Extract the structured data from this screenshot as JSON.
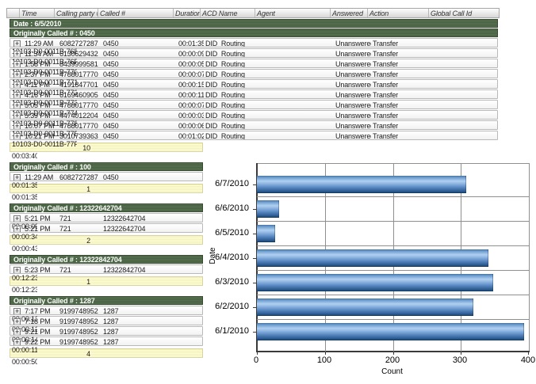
{
  "table": {
    "columns": [
      {
        "key": "expand",
        "label": ""
      },
      {
        "key": "time",
        "label": "Time"
      },
      {
        "key": "calling",
        "label": "Calling party #"
      },
      {
        "key": "called",
        "label": "Called #"
      },
      {
        "key": "duration",
        "label": "Duration"
      },
      {
        "key": "acd",
        "label": "ACD Name"
      },
      {
        "key": "agent",
        "label": "Agent"
      },
      {
        "key": "answered",
        "label": "Answered"
      },
      {
        "key": "action",
        "label": "Action"
      },
      {
        "key": "global_id",
        "label": "Global Call Id"
      }
    ],
    "date_band": "Date : 6/5/2010",
    "groups": [
      {
        "header": "Originally Called # : 0450",
        "wide": true,
        "rows": [
          {
            "time": "11:29 AM",
            "calling": "6082727287",
            "called": "0450",
            "duration": "00:01:35",
            "acd": "DID_Routing",
            "agent": "",
            "answered": "Unanswered",
            "action": "Transfer",
            "global_id": "10103-D0-0011B-768"
          },
          {
            "time": "11:34 AM",
            "calling": "6130629432",
            "called": "0450",
            "duration": "00:00:09",
            "acd": "DID_Routing",
            "agent": "",
            "answered": "Unanswered",
            "action": "Transfer",
            "global_id": "10103-D0-0011B-76F"
          },
          {
            "time": "1:58 PM",
            "calling": "8439999581",
            "called": "0450",
            "duration": "00:00:05",
            "acd": "DID_Routing",
            "agent": "",
            "answered": "Unanswered",
            "action": "Transfer",
            "global_id": "10103-D0-0011B-770"
          },
          {
            "time": "2:37 PM",
            "calling": "4788017770",
            "called": "0450",
            "duration": "00:00:07",
            "acd": "DID_Routing",
            "agent": "",
            "answered": "Unanswered",
            "action": "Transfer",
            "global_id": "10103-D0-0011B-771"
          },
          {
            "time": "4:11 PM",
            "calling": "4191847701",
            "called": "0450",
            "duration": "00:00:15",
            "acd": "DID_Routing",
            "agent": "",
            "answered": "Unanswered",
            "action": "Transfer",
            "global_id": "10103-D0-0011B-772"
          },
          {
            "time": "4:16 PM",
            "calling": "6169460905",
            "called": "0450",
            "duration": "00:00:11",
            "acd": "DID_Routing",
            "agent": "",
            "answered": "Unanswered",
            "action": "Transfer",
            "global_id": "10103-D0-0011B-773"
          },
          {
            "time": "5:05 PM",
            "calling": "4788017770",
            "called": "0450",
            "duration": "00:00:07",
            "acd": "DID_Routing",
            "agent": "",
            "answered": "Unanswered",
            "action": "Transfer",
            "global_id": "10103-D0-0011B-774"
          },
          {
            "time": "5:39 PM",
            "calling": "4474012204",
            "called": "0450",
            "duration": "00:00:03",
            "acd": "DID_Routing",
            "agent": "",
            "answered": "Unanswered",
            "action": "Transfer",
            "global_id": "10103-D0-0011B-778"
          },
          {
            "time": "10:07 PM",
            "calling": "4788017770",
            "called": "0450",
            "duration": "00:00:06",
            "acd": "DID_Routing",
            "agent": "",
            "answered": "Unanswered",
            "action": "Transfer",
            "global_id": "10103-D0-0011B-77E"
          },
          {
            "time": "10:21 PM",
            "calling": "3010739363",
            "called": "0450",
            "duration": "00:01:02",
            "acd": "DID_Routing",
            "agent": "",
            "answered": "Unanswered",
            "action": "Transfer",
            "global_id": "10103-D0-0011B-77F"
          }
        ],
        "summary": {
          "count": "10",
          "duration": "00:03:40"
        }
      },
      {
        "header": "Originally Called # : 100",
        "wide": false,
        "rows": [
          {
            "time": "11:29 AM",
            "calling": "6082727287",
            "called": "0450",
            "duration": "00:01:35"
          }
        ],
        "summary": {
          "count": "1",
          "duration": "00:01:35"
        }
      },
      {
        "header": "Originally Called # : 12322642704",
        "wide": false,
        "rows": [
          {
            "time": "5:21 PM",
            "calling": "721",
            "called": "12322642704",
            "duration": "00:00:09"
          },
          {
            "time": "5:21 PM",
            "calling": "721",
            "called": "12322642704",
            "duration": "00:00:34"
          }
        ],
        "summary": {
          "count": "2",
          "duration": "00:00:43"
        }
      },
      {
        "header": "Originally Called # : 12322842704",
        "wide": false,
        "rows": [
          {
            "time": "5:23 PM",
            "calling": "721",
            "called": "12322842704",
            "duration": "00:12:23"
          }
        ],
        "summary": {
          "count": "1",
          "duration": "00:12:23"
        }
      },
      {
        "header": "Originally Called # : 1287",
        "wide": false,
        "rows": [
          {
            "time": "7:17 PM",
            "calling": "9199748952",
            "called": "1287",
            "duration": "00:00:13"
          },
          {
            "time": "7:18 PM",
            "calling": "9199748952",
            "called": "1287",
            "duration": "00:00:12"
          },
          {
            "time": "9:21 PM",
            "calling": "9199748952",
            "called": "1287",
            "duration": "00:00:14"
          },
          {
            "time": "9:22 PM",
            "calling": "9199748952",
            "called": "1287",
            "duration": "00:00:11"
          }
        ],
        "summary": {
          "count": "4",
          "duration": "00:00:50"
        }
      }
    ]
  },
  "chart_data": {
    "type": "bar",
    "orientation": "horizontal",
    "categories": [
      "6/7/2010",
      "6/6/2010",
      "6/5/2010",
      "6/4/2010",
      "6/3/2010",
      "6/2/2010",
      "6/1/2010"
    ],
    "values": [
      308,
      33,
      27,
      341,
      348,
      318,
      393
    ],
    "xlabel": "Count",
    "ylabel": "Date",
    "xlim": [
      0,
      400
    ],
    "xticks": [
      0,
      100,
      200,
      300,
      400
    ],
    "grid": true,
    "legend": "none",
    "bar_color": "#5b8fc9"
  },
  "colors": {
    "group_band_green": "#4c6646",
    "summary_yellow": "#f9f6c3",
    "header_gray": "#e3e3e3",
    "bar_blue": "#5b8fc9",
    "grid_gray": "#8f8f8f"
  }
}
